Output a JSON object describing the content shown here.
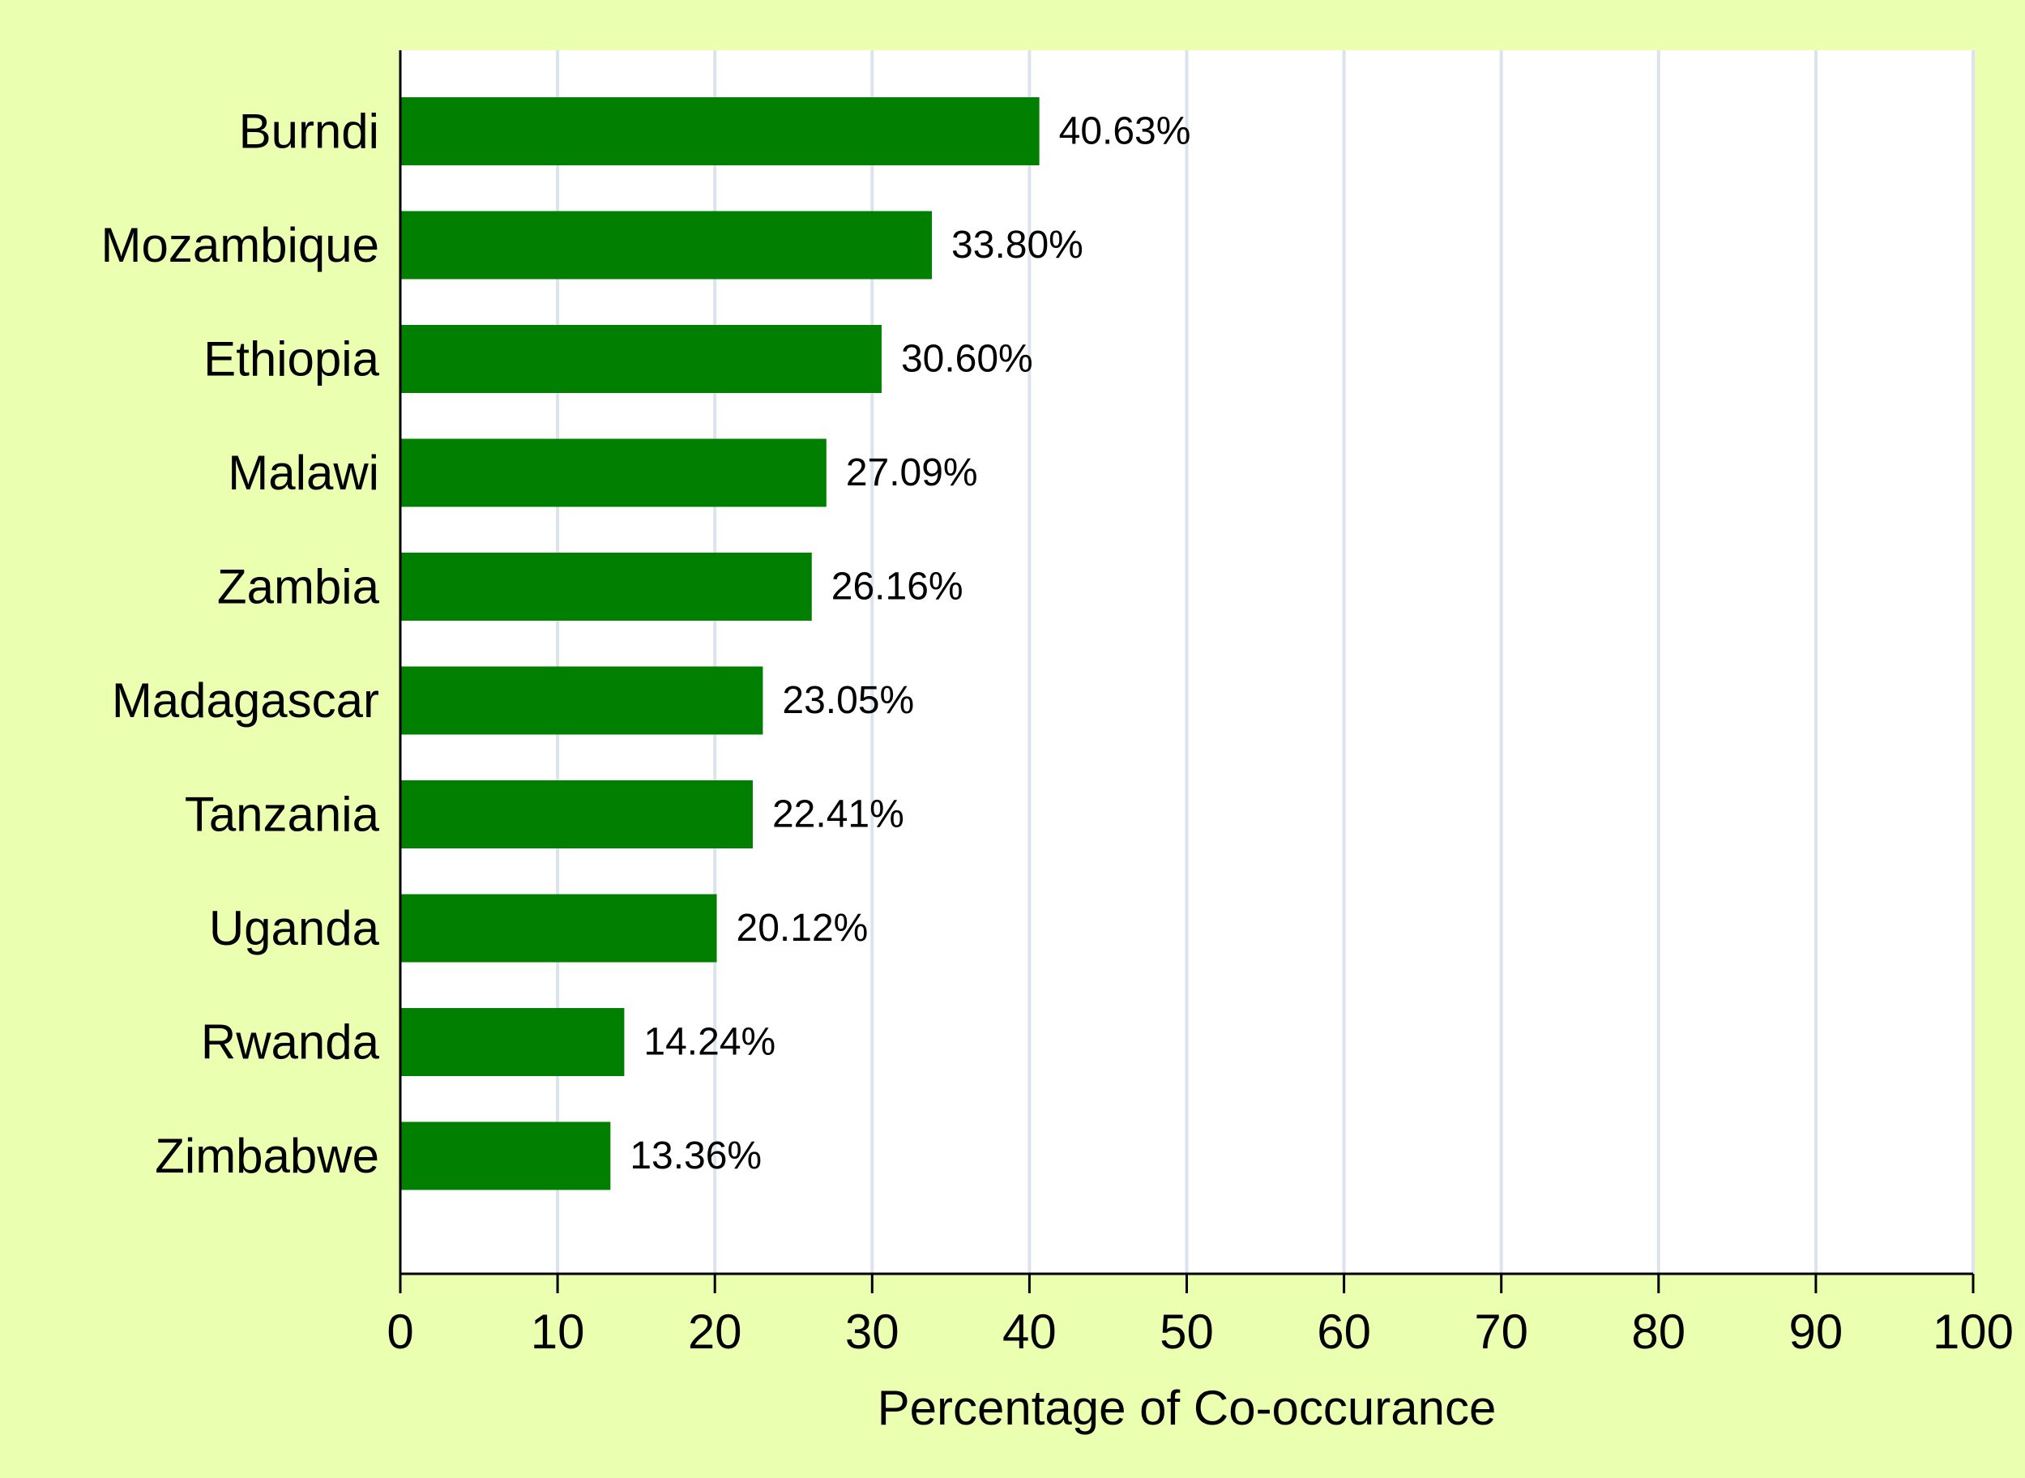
{
  "chart_data": {
    "type": "bar",
    "orientation": "horizontal",
    "title": "",
    "xlabel": "Percentage of Co-occurance",
    "ylabel": "",
    "xlim": [
      0,
      100
    ],
    "xticks": [
      0,
      10,
      20,
      30,
      40,
      50,
      60,
      70,
      80,
      90,
      100
    ],
    "grid": "vertical",
    "categories": [
      "Burndi",
      "Mozambique",
      "Ethiopia",
      "Malawi",
      "Zambia",
      "Madagascar",
      "Tanzania",
      "Uganda",
      "Rwanda",
      "Zimbabwe"
    ],
    "values": [
      40.63,
      33.8,
      30.6,
      27.09,
      26.16,
      23.05,
      22.41,
      20.12,
      14.24,
      13.36
    ],
    "data_labels": [
      "40.63%",
      "33.80%",
      "30.60%",
      "27.09%",
      "26.16%",
      "23.05%",
      "22.41%",
      "20.12%",
      "14.24%",
      "13.36%"
    ]
  },
  "colors": {
    "background": "#eaffb0",
    "plot_background": "#ffffff",
    "bar": "#007f00",
    "grid": "#dde3ec",
    "axis": "#000000"
  }
}
